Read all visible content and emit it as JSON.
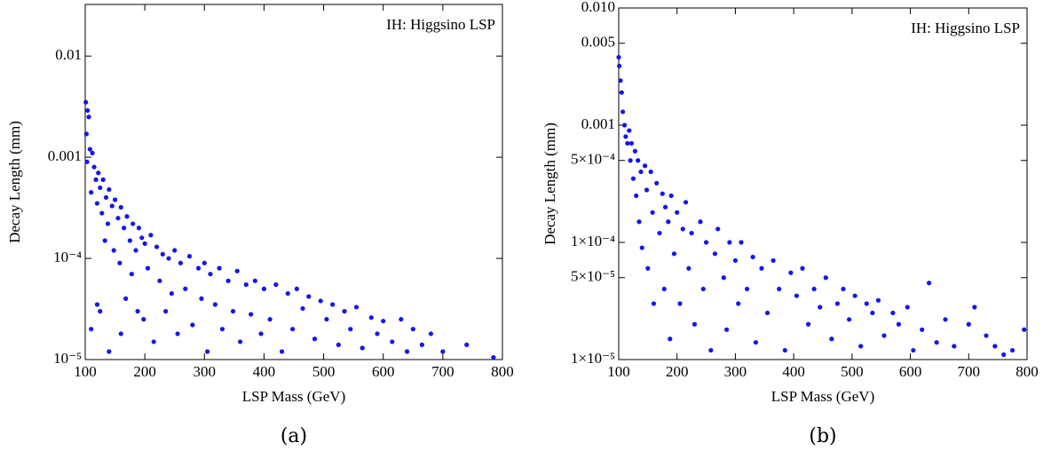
{
  "chart_data": [
    {
      "type": "scatter",
      "annotation": "IH: Higgsino LSP",
      "xlabel": "LSP Mass (GeV)",
      "ylabel": "Decay Length (mm)",
      "caption": "(a)",
      "log_y": true,
      "color": "#1414f0",
      "xlim": [
        100,
        800
      ],
      "xticks": [
        100,
        200,
        300,
        400,
        500,
        600,
        700,
        800
      ],
      "ylim": [
        1e-05,
        0.0324
      ],
      "yticks": [
        {
          "value": 1e-05,
          "label": "10⁻⁵"
        },
        {
          "value": 0.0001,
          "label": "10⁻⁴"
        },
        0.001,
        0.01
      ],
      "x": [
        101,
        102,
        104,
        106,
        103,
        108,
        110,
        112,
        115,
        118,
        120,
        122,
        125,
        128,
        130,
        133,
        135,
        138,
        140,
        145,
        148,
        150,
        155,
        158,
        160,
        165,
        168,
        170,
        175,
        178,
        180,
        185,
        188,
        190,
        195,
        198,
        200,
        205,
        210,
        215,
        220,
        225,
        230,
        235,
        240,
        245,
        250,
        255,
        260,
        268,
        275,
        280,
        290,
        295,
        300,
        305,
        310,
        318,
        325,
        330,
        340,
        348,
        355,
        360,
        370,
        378,
        385,
        395,
        400,
        410,
        420,
        430,
        440,
        448,
        455,
        465,
        475,
        485,
        495,
        505,
        515,
        525,
        535,
        545,
        555,
        565,
        580,
        590,
        600,
        615,
        630,
        640,
        650,
        665,
        680,
        700,
        740,
        785,
        110,
        125,
        140,
        160,
        120
      ],
      "values": [
        0.0035,
        0.0017,
        0.0029,
        0.0025,
        0.0009,
        0.0012,
        0.00045,
        0.0011,
        0.0008,
        0.0006,
        0.00035,
        0.0007,
        0.0005,
        0.00028,
        0.0006,
        0.00015,
        0.0004,
        0.00022,
        0.00048,
        0.00033,
        0.00012,
        0.00038,
        0.00025,
        9e-05,
        0.00032,
        0.0002,
        4e-05,
        0.00026,
        0.00015,
        7e-05,
        0.00022,
        0.00012,
        3e-05,
        0.0002,
        0.00016,
        2.5e-05,
        0.00014,
        8e-05,
        0.00017,
        1.5e-05,
        0.00013,
        6e-05,
        0.00011,
        3e-05,
        0.0001,
        4.5e-05,
        0.00012,
        1.8e-05,
        9e-05,
        5e-05,
        0.000105,
        2.2e-05,
        8e-05,
        4e-05,
        9e-05,
        1.2e-05,
        7e-05,
        3.5e-05,
        8e-05,
        2e-05,
        6e-05,
        3e-05,
        7.5e-05,
        1.5e-05,
        5.5e-05,
        2.8e-05,
        6e-05,
        1.8e-05,
        5e-05,
        2.5e-05,
        5.5e-05,
        1.2e-05,
        4.5e-05,
        2e-05,
        5e-05,
        3.2e-05,
        4.2e-05,
        1.6e-05,
        3.8e-05,
        2.5e-05,
        3.5e-05,
        1.4e-05,
        3e-05,
        2e-05,
        3.3e-05,
        1.3e-05,
        2.6e-05,
        1.8e-05,
        2.4e-05,
        1.5e-05,
        2.5e-05,
        1.2e-05,
        2e-05,
        1.4e-05,
        1.8e-05,
        1.2e-05,
        1.4e-05,
        1.05e-05,
        2e-05,
        3e-05,
        1.2e-05,
        1.8e-05,
        3.5e-05
      ]
    },
    {
      "type": "scatter",
      "annotation": "IH: Higgsino LSP",
      "xlabel": "LSP Mass (GeV)",
      "ylabel": "Decay Length (mm)",
      "caption": "(b)",
      "log_y": true,
      "color": "#1414f0",
      "xlim": [
        100,
        800
      ],
      "xticks": [
        100,
        200,
        300,
        400,
        500,
        600,
        700,
        800
      ],
      "ylim": [
        1e-05,
        0.01
      ],
      "yticks": [
        {
          "value": 1e-05,
          "label": "1×10⁻⁵"
        },
        {
          "value": 5e-05,
          "label": "5×10⁻⁵"
        },
        {
          "value": 0.0001,
          "label": "1×10⁻⁴"
        },
        {
          "value": 0.0005,
          "label": "5×10⁻⁴"
        },
        0.001,
        0.005,
        {
          "value": 0.01,
          "label": "0.010"
        }
      ],
      "x": [
        100,
        101,
        103,
        105,
        107,
        110,
        112,
        115,
        118,
        120,
        122,
        125,
        128,
        130,
        133,
        135,
        138,
        140,
        145,
        148,
        150,
        155,
        158,
        160,
        165,
        170,
        175,
        178,
        180,
        185,
        188,
        190,
        195,
        200,
        205,
        210,
        215,
        220,
        225,
        230,
        240,
        245,
        250,
        258,
        265,
        270,
        280,
        285,
        290,
        300,
        305,
        310,
        320,
        330,
        335,
        345,
        355,
        365,
        375,
        385,
        395,
        405,
        415,
        425,
        435,
        445,
        455,
        465,
        475,
        485,
        495,
        505,
        515,
        525,
        535,
        545,
        555,
        570,
        580,
        595,
        605,
        620,
        632,
        645,
        660,
        675,
        700,
        710,
        730,
        745,
        760,
        775,
        795
      ],
      "values": [
        0.0038,
        0.0032,
        0.0024,
        0.0019,
        0.0013,
        0.001,
        0.0008,
        0.0007,
        0.0009,
        0.0005,
        0.0007,
        0.00035,
        0.0006,
        0.00025,
        0.0005,
        0.00015,
        0.0004,
        9e-05,
        0.00045,
        0.00028,
        6e-05,
        0.0004,
        0.00018,
        3e-05,
        0.00032,
        0.00012,
        0.00026,
        4e-05,
        0.0002,
        0.00015,
        1.5e-05,
        0.00025,
        8e-05,
        0.00018,
        3e-05,
        0.00013,
        0.00022,
        6e-05,
        0.00012,
        2e-05,
        0.00015,
        4e-05,
        0.0001,
        1.2e-05,
        8e-05,
        0.00013,
        5e-05,
        1.8e-05,
        0.0001,
        7e-05,
        3e-05,
        0.0001,
        4e-05,
        7.5e-05,
        1.4e-05,
        6e-05,
        2.5e-05,
        7e-05,
        4e-05,
        1.2e-05,
        5.5e-05,
        3.5e-05,
        6e-05,
        2e-05,
        4e-05,
        2.8e-05,
        5e-05,
        1.5e-05,
        3e-05,
        4e-05,
        2.2e-05,
        3.5e-05,
        1.3e-05,
        3e-05,
        2.5e-05,
        3.2e-05,
        1.6e-05,
        2.5e-05,
        2e-05,
        2.8e-05,
        1.2e-05,
        1.8e-05,
        4.5e-05,
        1.4e-05,
        2.2e-05,
        1.3e-05,
        2e-05,
        2.8e-05,
        1.6e-05,
        1.3e-05,
        1.1e-05,
        1.2e-05,
        1.8e-05
      ]
    }
  ]
}
